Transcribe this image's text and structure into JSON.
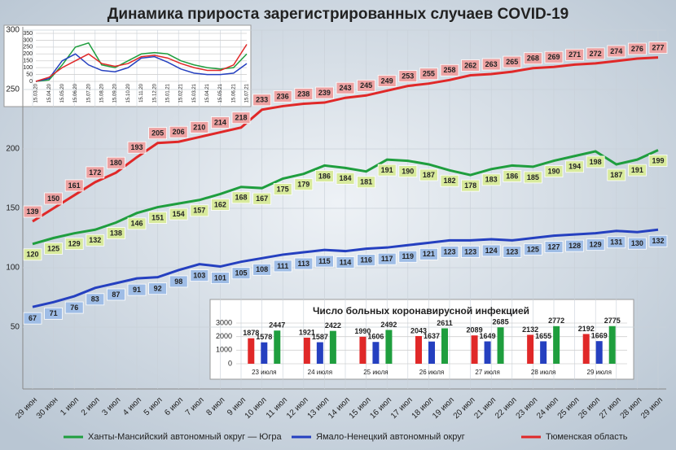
{
  "chart_data": [
    {
      "type": "line",
      "title": "Динамика прироста зарегистрированных случаев COVID-19",
      "categories": [
        "29 июн",
        "30 июн",
        "1 июл",
        "2 июл",
        "3 июл",
        "4 июл",
        "5 июл",
        "6 июл",
        "7 июл",
        "8 июл",
        "9 июл",
        "10 июл",
        "11 июл",
        "12 июл",
        "13 июл",
        "14 июл",
        "15 июл",
        "16 июл",
        "17 июл",
        "18 июл",
        "19 июл",
        "20 июл",
        "21 июл",
        "22 июл",
        "23 июл",
        "24 июл",
        "25 июл",
        "26 июл",
        "27 июл",
        "28 июл",
        "29 июл"
      ],
      "series": [
        {
          "name": "Ханты-Мансийский автономный округ — Югра",
          "color": "#1f9e3e",
          "values": [
            120,
            125,
            129,
            132,
            138,
            146,
            151,
            154,
            157,
            162,
            168,
            167,
            175,
            179,
            186,
            184,
            181,
            191,
            190,
            187,
            182,
            178,
            183,
            186,
            185,
            190,
            194,
            198,
            187,
            191,
            199
          ]
        },
        {
          "name": "Ямало-Ненецкий автономный округ",
          "color": "#2540c0",
          "values": [
            67,
            71,
            76,
            83,
            87,
            91,
            92,
            98,
            103,
            101,
            105,
            108,
            111,
            113,
            115,
            114,
            116,
            117,
            119,
            121,
            123,
            123,
            124,
            123,
            125,
            127,
            128,
            129,
            131,
            130,
            132
          ]
        },
        {
          "name": "Тюменская область",
          "color": "#e02828",
          "values": [
            139,
            150,
            161,
            172,
            180,
            193,
            205,
            206,
            210,
            214,
            218,
            233,
            236,
            238,
            239,
            243,
            245,
            249,
            253,
            255,
            258,
            262,
            263,
            265,
            268,
            269,
            271,
            272,
            274,
            276,
            277
          ]
        }
      ],
      "ylim": [
        0,
        300
      ],
      "yticks": [
        50,
        100,
        150,
        200,
        250,
        300
      ],
      "grid": true,
      "data_labels": true
    },
    {
      "type": "line",
      "categories": [
        "15.03.20",
        "15.04.20",
        "15.05.20",
        "15.06.20",
        "15.07.20",
        "15.08.20",
        "15.09.20",
        "15.10.20",
        "15.11.20",
        "15.12.20",
        "15.01.21",
        "15.02.21",
        "15.03.21",
        "15.04.21",
        "15.05.21",
        "15.06.21",
        "15.07.21"
      ],
      "series": [
        {
          "color": "#1f9e3e",
          "values": [
            0,
            10,
            120,
            250,
            280,
            120,
            100,
            150,
            200,
            210,
            200,
            150,
            120,
            100,
            90,
            100,
            200
          ]
        },
        {
          "color": "#2540c0",
          "values": [
            0,
            20,
            150,
            200,
            120,
            80,
            70,
            100,
            170,
            180,
            140,
            90,
            60,
            50,
            50,
            60,
            130
          ]
        },
        {
          "color": "#e02828",
          "values": [
            0,
            30,
            100,
            150,
            200,
            130,
            110,
            130,
            180,
            190,
            170,
            130,
            100,
            80,
            80,
            120,
            270
          ]
        }
      ],
      "ylim": [
        0,
        350
      ],
      "yticks": [
        0,
        50,
        100,
        150,
        200,
        250,
        300,
        350
      ],
      "grid": true
    },
    {
      "type": "bar",
      "title": "Число больных коронавирусной инфекцией",
      "categories": [
        "23 июля",
        "24 июля",
        "25 июля",
        "26 июля",
        "27 июля",
        "28 июля",
        "29 июля"
      ],
      "series": [
        {
          "color": "#e02828",
          "values": [
            1878,
            1921,
            1990,
            2043,
            2089,
            2132,
            2192
          ]
        },
        {
          "color": "#2540c0",
          "values": [
            1578,
            1587,
            1606,
            1637,
            1649,
            1655,
            1669
          ]
        },
        {
          "color": "#1f9e3e",
          "values": [
            2447,
            2422,
            2492,
            2611,
            2685,
            2772,
            2775
          ]
        }
      ],
      "ylim": [
        0,
        3000
      ],
      "yticks": [
        0,
        1000,
        2000,
        3000
      ],
      "grid": true,
      "data_labels": true
    }
  ]
}
